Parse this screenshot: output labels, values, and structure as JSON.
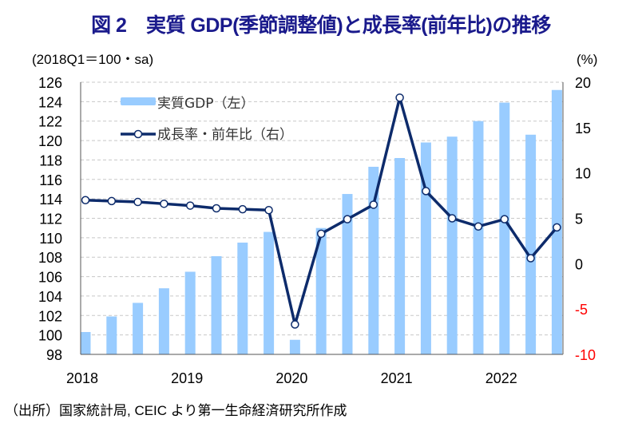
{
  "chart_data": {
    "type": "bar+line",
    "title": "図 2　実質 GDP(季節調整値)と成長率(前年比)の推移",
    "left_axis_label": "(2018Q1＝100・sa)",
    "right_axis_label": "(%)",
    "left_ylim": [
      98,
      126
    ],
    "left_ticks": [
      98,
      100,
      102,
      104,
      106,
      108,
      110,
      112,
      114,
      116,
      118,
      120,
      122,
      124,
      126
    ],
    "right_ylim": [
      -10,
      20
    ],
    "right_ticks": [
      -10,
      -5,
      0,
      5,
      10,
      15,
      20
    ],
    "x_tick_labels": [
      "2018",
      "2019",
      "2020",
      "2021",
      "2022"
    ],
    "x_tick_indices": [
      0,
      4,
      8,
      12,
      16
    ],
    "grid": true,
    "legend_position": "top-left",
    "series": [
      {
        "name": "実質GDP（左）",
        "type": "bar",
        "axis": "left",
        "color": "#99ccff",
        "values": [
          100.3,
          101.9,
          103.3,
          104.8,
          106.5,
          108.1,
          109.5,
          110.6,
          99.5,
          111.0,
          114.5,
          117.3,
          118.2,
          119.8,
          120.4,
          122.0,
          123.9,
          120.6,
          125.2
        ]
      },
      {
        "name": "成長率・前年比（右）",
        "type": "line",
        "axis": "right",
        "color": "#0d2b6b",
        "values": [
          7.0,
          6.9,
          6.8,
          6.6,
          6.4,
          6.1,
          6.0,
          5.9,
          -6.7,
          3.3,
          4.9,
          6.5,
          18.3,
          8.0,
          5.0,
          4.1,
          4.9,
          0.6,
          4.0
        ]
      }
    ],
    "negative_tick_color": "#ff0000"
  },
  "source": "（出所）国家統計局, CEIC より第一生命経済研究所作成"
}
